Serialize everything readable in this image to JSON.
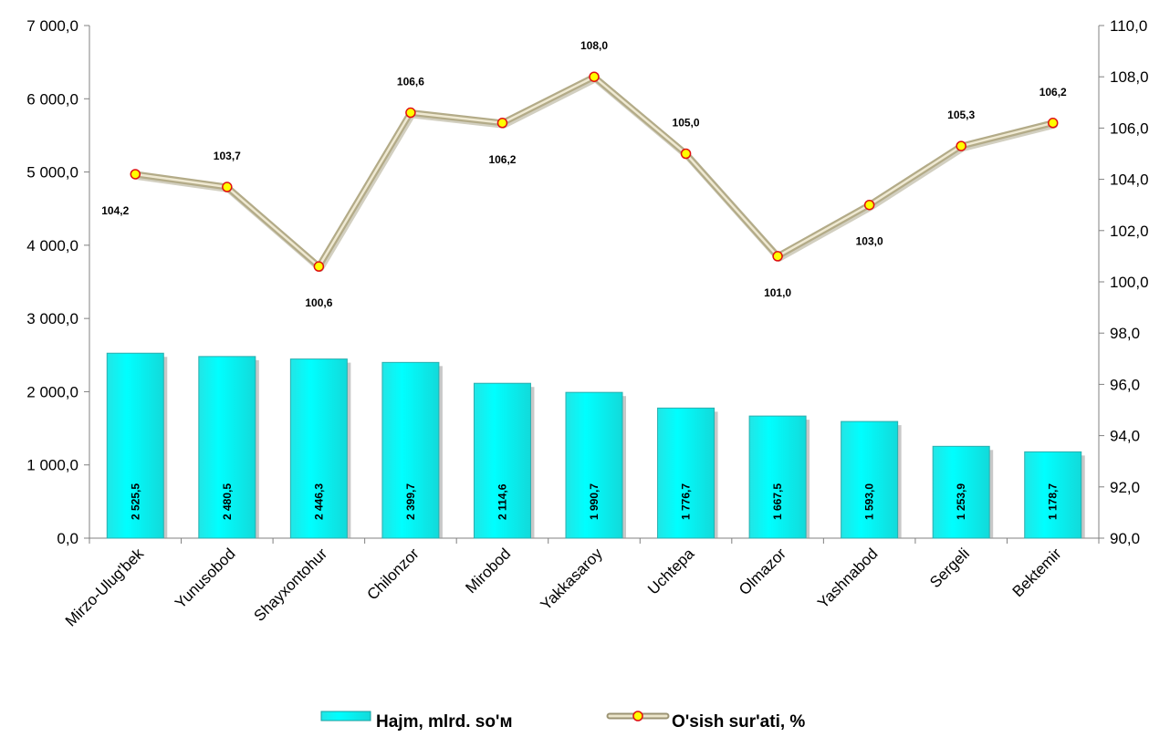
{
  "chart_data": {
    "type": "bar",
    "categories": [
      "Mirzo-Ulug'bek",
      "Yunusobod",
      "Shayxontohur",
      "Chilonzor",
      "Mirobod",
      "Yakkasaroy",
      "Uchtepa",
      "Olmazor",
      "Yashnabod",
      "Sergeli",
      "Bektemir"
    ],
    "series": [
      {
        "name": "Hajm, mlrd. so'м",
        "type": "bar",
        "axis": "left",
        "values": [
          2525.5,
          2480.5,
          2446.3,
          2399.7,
          2114.6,
          1990.7,
          1776.7,
          1667.5,
          1593.0,
          1253.9,
          1178.7
        ],
        "labels": [
          "2 525,5",
          "2 480,5",
          "2 446,3",
          "2 399,7",
          "2 114,6",
          "1 990,7",
          "1 776,7",
          "1 667,5",
          "1 593,0",
          "1 253,9",
          "1 178,7"
        ],
        "color": "#00FFFF"
      },
      {
        "name": "O'sish sur'ati, %",
        "type": "line",
        "axis": "right",
        "values": [
          104.2,
          103.7,
          100.6,
          106.6,
          106.2,
          108.0,
          105.0,
          101.0,
          103.0,
          105.3,
          106.2
        ],
        "labels": [
          "104,2",
          "103,7",
          "100,6",
          "106,6",
          "106,2",
          "108,0",
          "105,0",
          "101,0",
          "103,0",
          "105,3",
          "106,2"
        ],
        "label_position": [
          "below",
          "above",
          "below",
          "above",
          "below",
          "above",
          "above",
          "below",
          "below",
          "above",
          "above"
        ],
        "color": "#C4BD97",
        "marker_color": "#FFFF00",
        "marker_edge": "#E01010"
      }
    ],
    "y_left": {
      "min": 0,
      "max": 7000,
      "step": 1000,
      "ticks": [
        "0,0",
        "1 000,0",
        "2 000,0",
        "3 000,0",
        "4 000,0",
        "5 000,0",
        "6 000,0",
        "7 000,0"
      ]
    },
    "y_right": {
      "min": 90,
      "max": 110,
      "step": 2,
      "ticks": [
        "90,0",
        "92,0",
        "94,0",
        "96,0",
        "98,0",
        "100,0",
        "102,0",
        "104,0",
        "106,0",
        "108,0",
        "110,0"
      ]
    },
    "grid": false,
    "legend_position": "bottom-center",
    "title": "",
    "xlabel": "",
    "ylabel": ""
  }
}
